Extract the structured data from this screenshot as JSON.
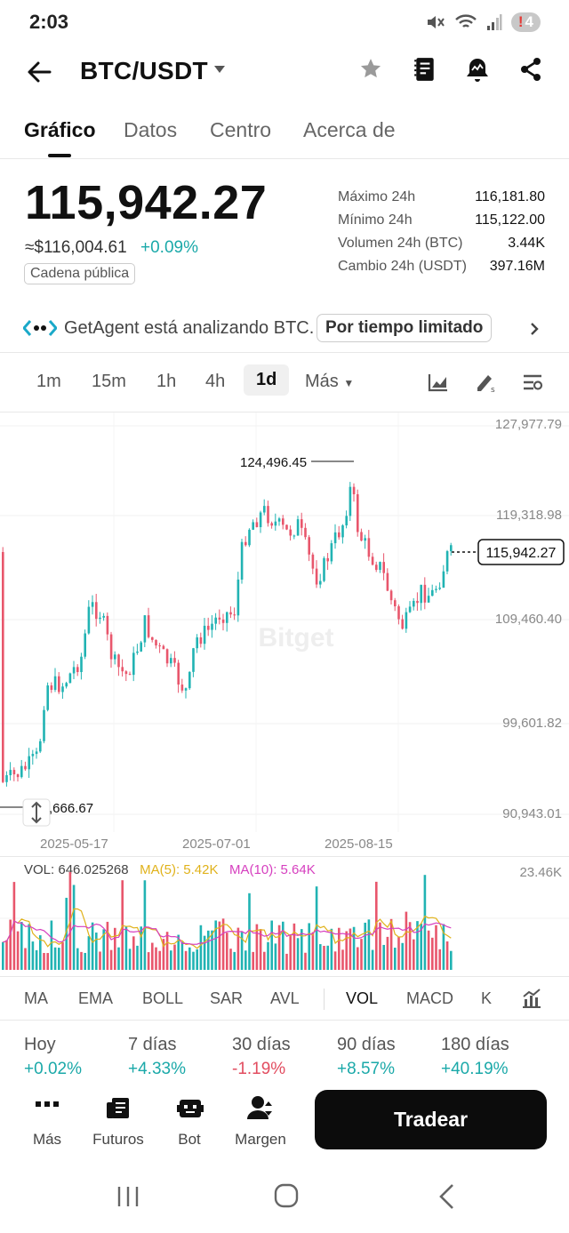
{
  "status": {
    "time": "2:03",
    "notif_count": "4"
  },
  "header": {
    "pair": "BTC/USDT"
  },
  "tabs": [
    {
      "label": "Gráfico"
    },
    {
      "label": "Datos"
    },
    {
      "label": "Centro"
    },
    {
      "label": "Acerca de"
    }
  ],
  "price": {
    "last": "115,942.27",
    "fiat": "≈$116,004.61",
    "change": "+0.09%",
    "chain_chip": "Cadena pública"
  },
  "stats": [
    {
      "label": "Máximo 24h",
      "value": "116,181.80"
    },
    {
      "label": "Mínimo 24h",
      "value": "115,122.00"
    },
    {
      "label": "Volumen 24h (BTC)",
      "value": "3.44K"
    },
    {
      "label": "Cambio 24h (USDT)",
      "value": "397.16M"
    }
  ],
  "agent": {
    "text": "GetAgent está analizando BTC.",
    "chip": "Por tiempo limitado"
  },
  "intervals": [
    {
      "label": "1m"
    },
    {
      "label": "15m"
    },
    {
      "label": "1h"
    },
    {
      "label": "4h"
    },
    {
      "label": "1d"
    }
  ],
  "more_label": "Más",
  "chart": {
    "y_labels": [
      "127,977.79",
      "119,318.98",
      "109,460.40",
      "99,601.82",
      "90,943.01"
    ],
    "x_labels": [
      "2025-05-17",
      "2025-07-01",
      "2025-08-15"
    ],
    "high_marker": "124,496.45",
    "low_marker": "…,666.67",
    "current_marker": "115,942.27",
    "watermark": "Bitget",
    "colors": {
      "up": "#21b3b3",
      "down": "#e8566c"
    }
  },
  "volume": {
    "vol": "VOL: 646.025268",
    "ma5": "MA(5): 5.42K",
    "ma10": "MA(10): 5.64K",
    "max": "23.46K",
    "colors": {
      "ma5": "#e0b21b",
      "ma10": "#d63fbf"
    }
  },
  "indicators": [
    {
      "label": "MA"
    },
    {
      "label": "EMA"
    },
    {
      "label": "BOLL"
    },
    {
      "label": "SAR"
    },
    {
      "label": "AVL"
    },
    {
      "label": "VOL"
    },
    {
      "label": "MACD"
    },
    {
      "label": "K"
    }
  ],
  "performance": [
    {
      "label": "Hoy",
      "value": "+0.02%",
      "dir": "up"
    },
    {
      "label": "7 días",
      "value": "+4.33%",
      "dir": "up"
    },
    {
      "label": "30 días",
      "value": "-1.19%",
      "dir": "down"
    },
    {
      "label": "90 días",
      "value": "+8.57%",
      "dir": "up"
    },
    {
      "label": "180 días",
      "value": "+40.19%",
      "dir": "up"
    }
  ],
  "actions": [
    {
      "label": "Más",
      "icon": "more-dots-icon"
    },
    {
      "label": "Futuros",
      "icon": "futures-icon"
    },
    {
      "label": "Bot",
      "icon": "bot-icon"
    },
    {
      "label": "Margen",
      "icon": "margin-icon"
    }
  ],
  "trade_label": "Tradear"
}
